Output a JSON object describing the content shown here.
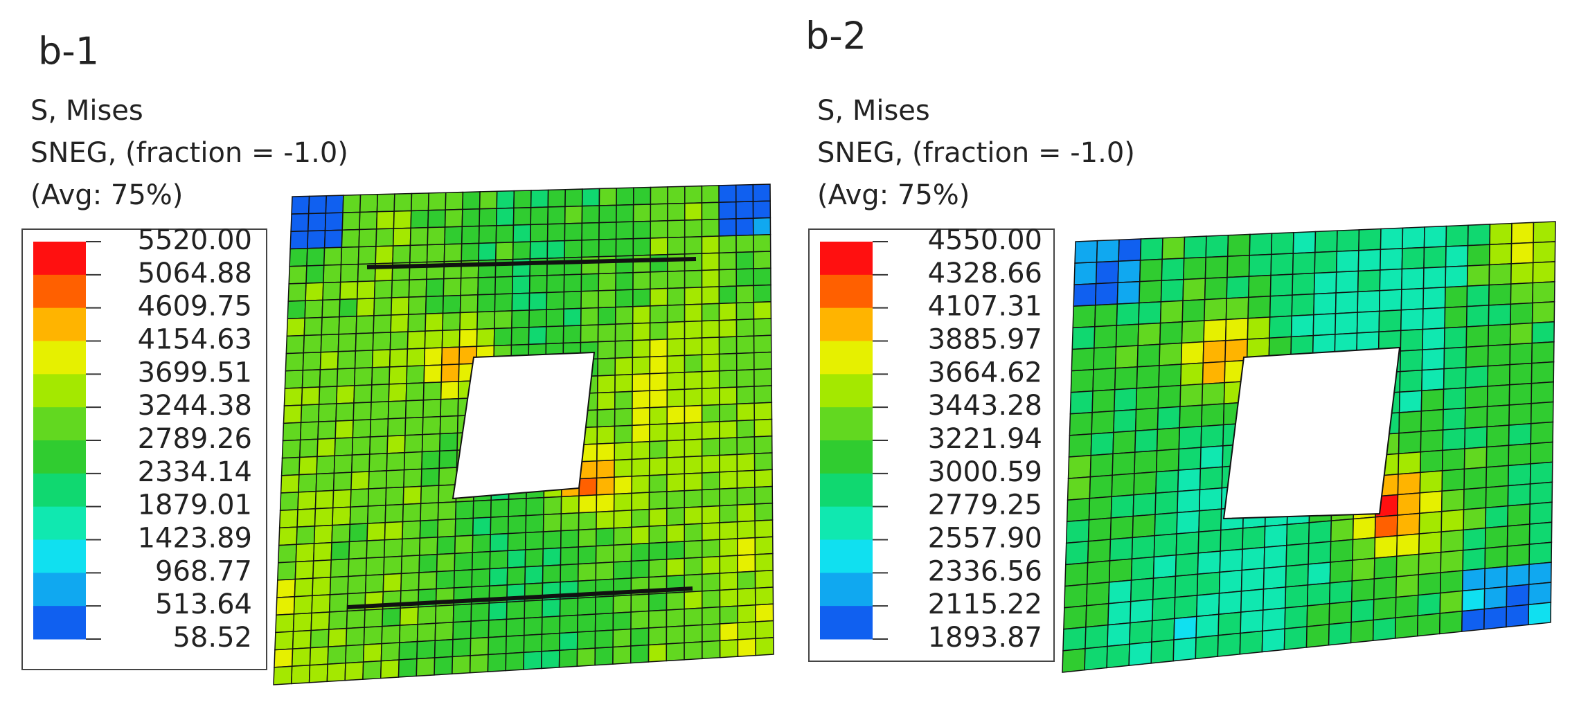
{
  "panels": [
    {
      "label": "b-1",
      "header": [
        "S, Mises",
        "SNEG, (fraction = -1.0)",
        "(Avg: 75%)"
      ],
      "legend": [
        "5520.00",
        "5064.88",
        "4609.75",
        "4154.63",
        "3699.51",
        "3244.38",
        "2789.26",
        "2334.14",
        "1879.01",
        "1423.89",
        "968.77",
        "513.64",
        "58.52"
      ]
    },
    {
      "label": "b-2",
      "header": [
        "S, Mises",
        "SNEG, (fraction = -1.0)",
        "(Avg: 75%)"
      ],
      "legend": [
        "4550.00",
        "4328.66",
        "4107.31",
        "3885.97",
        "3664.62",
        "3443.28",
        "3221.94",
        "3000.59",
        "2779.25",
        "2557.90",
        "2336.56",
        "2115.22",
        "1893.87"
      ]
    }
  ]
}
